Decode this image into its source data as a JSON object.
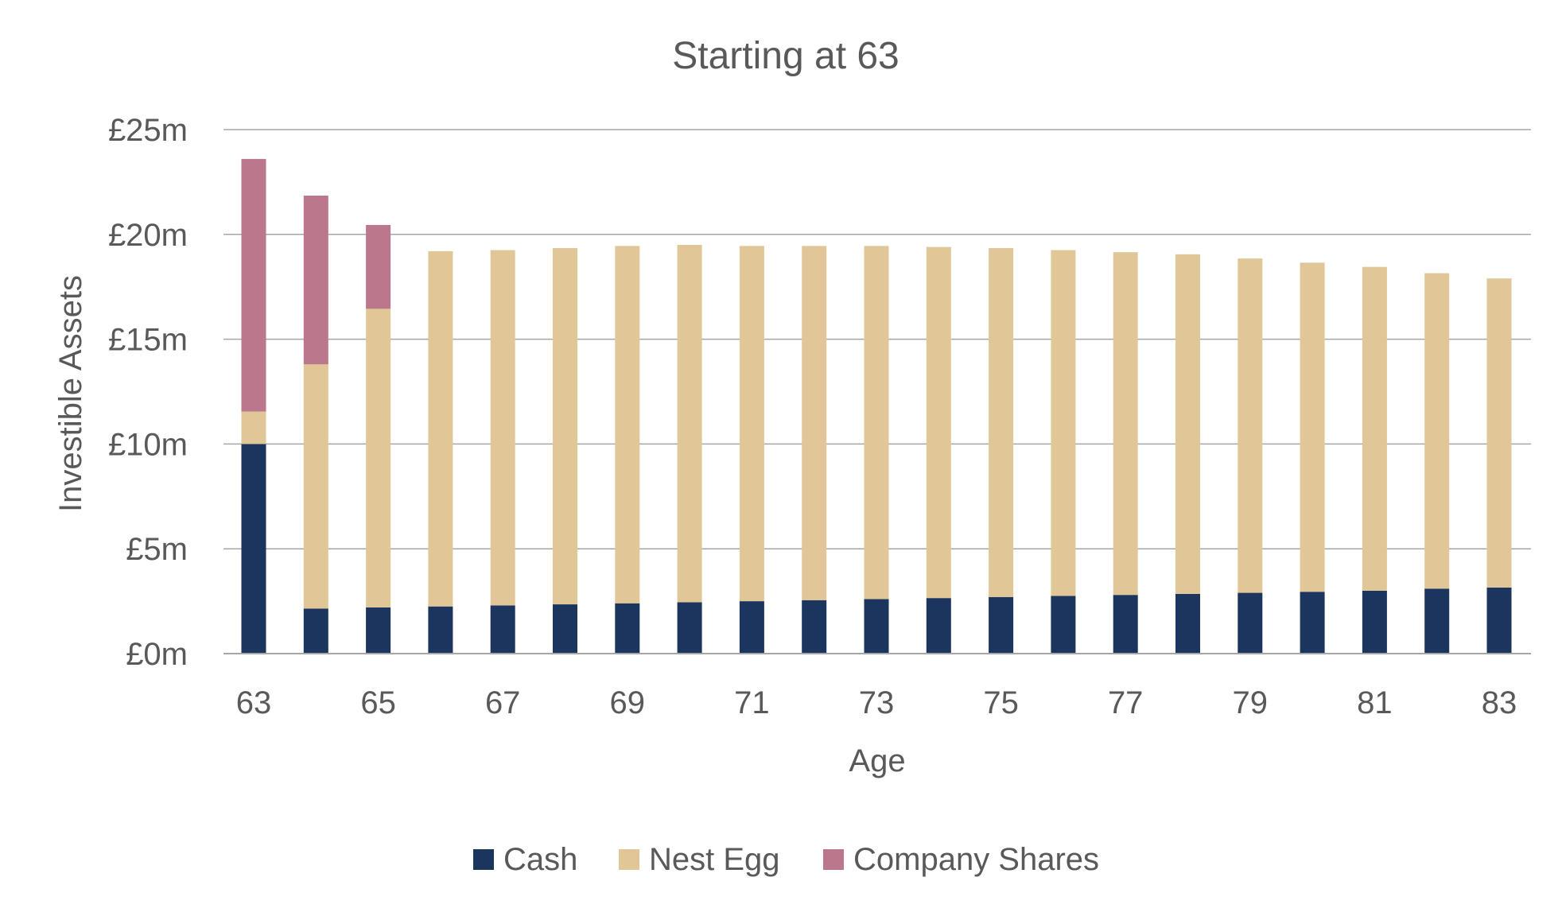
{
  "chart_data": {
    "type": "bar",
    "stacked": true,
    "title": "Starting at 63",
    "xlabel": "Age",
    "ylabel": "Investible Assets",
    "ylim": [
      0,
      25
    ],
    "yticks": [
      0,
      5,
      10,
      15,
      20,
      25
    ],
    "ytick_labels": [
      "£0m",
      "£5m",
      "£10m",
      "£15m",
      "£20m",
      "£25m"
    ],
    "categories": [
      "63",
      "64",
      "65",
      "66",
      "67",
      "68",
      "69",
      "70",
      "71",
      "72",
      "73",
      "74",
      "75",
      "76",
      "77",
      "78",
      "79",
      "80",
      "81",
      "82",
      "83"
    ],
    "xtick_labels_shown": [
      "63",
      "65",
      "67",
      "69",
      "71",
      "73",
      "75",
      "77",
      "79",
      "81",
      "83"
    ],
    "grid": true,
    "legend_position": "bottom-center",
    "series": [
      {
        "name": "Cash",
        "color": "#1c355e",
        "values": [
          10.0,
          2.15,
          2.2,
          2.25,
          2.3,
          2.35,
          2.4,
          2.45,
          2.5,
          2.55,
          2.6,
          2.65,
          2.7,
          2.75,
          2.8,
          2.85,
          2.9,
          2.95,
          3.0,
          3.1,
          3.15
        ]
      },
      {
        "name": "Nest Egg",
        "color": "#e1c797",
        "values": [
          1.55,
          11.65,
          14.25,
          16.95,
          16.95,
          17.0,
          17.05,
          17.05,
          16.95,
          16.9,
          16.85,
          16.75,
          16.65,
          16.5,
          16.35,
          16.2,
          15.95,
          15.7,
          15.45,
          15.05,
          14.75
        ]
      },
      {
        "name": "Company Shares",
        "color": "#bb788c",
        "values": [
          12.05,
          8.05,
          4.0,
          0,
          0,
          0,
          0,
          0,
          0,
          0,
          0,
          0,
          0,
          0,
          0,
          0,
          0,
          0,
          0,
          0,
          0
        ]
      }
    ]
  }
}
